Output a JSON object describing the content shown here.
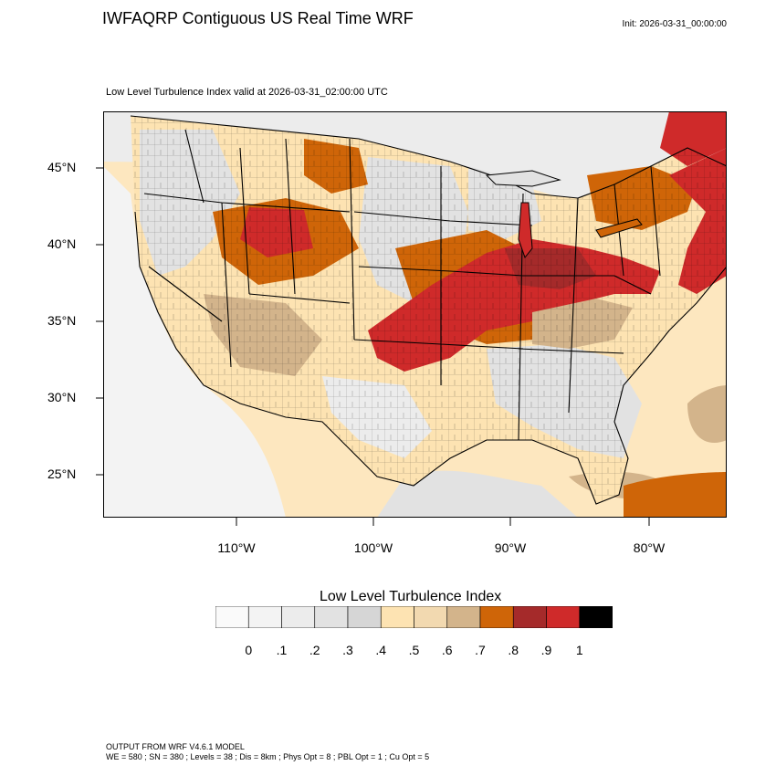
{
  "header": {
    "title": "IWFAQRP Contiguous US Real Time WRF",
    "init": "Init: 2026-03-31_00:00:00"
  },
  "map": {
    "subtitle": "Low Level Turbulence Index valid at 2026-03-31_02:00:00 UTC",
    "lat_labels": [
      "45°N",
      "40°N",
      "35°N",
      "30°N",
      "25°N"
    ],
    "lon_labels": [
      "110°W",
      "100°W",
      "90°W",
      "80°W"
    ]
  },
  "colorbar": {
    "title": "Low Level Turbulence Index",
    "tick_labels": [
      "0",
      ".1",
      ".2",
      ".3",
      ".4",
      ".5",
      ".6",
      ".7",
      ".8",
      ".9",
      "1"
    ],
    "colors": [
      "#fafafa",
      "#f3f3f3",
      "#ececec",
      "#e2e2e2",
      "#d6d6d6",
      "#fde3b2",
      "#f2d9b0",
      "#d3b48b",
      "#cf6508",
      "#a52a2a",
      "#cf2a2a",
      "#000000"
    ]
  },
  "palette": {
    "ocean": "#fde7bf",
    "land": "#fde3b2",
    "grey": "#e2e2e2",
    "grey_light": "#ececec",
    "tan": "#d3b48b",
    "orange": "#cf6508",
    "red": "#cf2a2a",
    "darkred": "#a52a2a"
  },
  "footer": {
    "line1": "OUTPUT FROM WRF V4.6.1 MODEL",
    "line2": "WE = 580 ; SN = 380 ; Levels = 38 ; Dis = 8km ; Phys Opt = 8 ; PBL Opt = 1 ; Cu Opt = 5"
  }
}
